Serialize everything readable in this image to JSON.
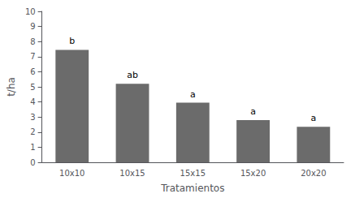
{
  "chart_data": {
    "type": "bar",
    "categories": [
      "10x10",
      "10x15",
      "15x15",
      "15x20",
      "20x20"
    ],
    "values": [
      7.45,
      5.2,
      3.95,
      2.8,
      2.35
    ],
    "color": "#6b6b6b",
    "annotations": [
      {
        "category": "10x10",
        "text": "b"
      },
      {
        "category": "10x15",
        "text": "ab"
      },
      {
        "category": "15x15",
        "text": "a"
      },
      {
        "category": "15x20",
        "text": "a"
      },
      {
        "category": "20x20",
        "text": "a"
      }
    ],
    "xlabel": "Tratamientos",
    "ylabel": "t/ha",
    "ylim": [
      0,
      10
    ],
    "yticks": [
      0,
      1,
      2,
      3,
      4,
      5,
      6,
      7,
      8,
      9,
      10
    ],
    "grid": false
  }
}
